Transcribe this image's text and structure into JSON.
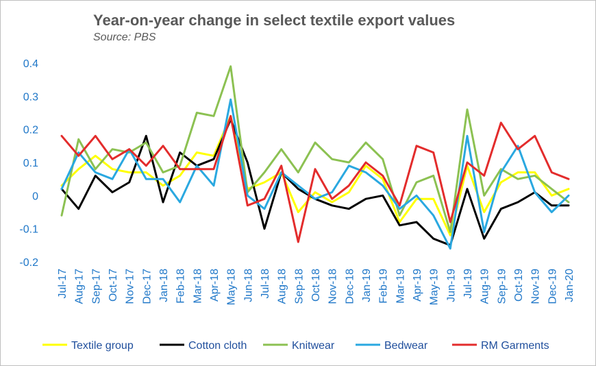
{
  "title": "Year-on-year change in select textile export values",
  "subtitle": "Source: PBS",
  "chart_data": {
    "type": "line",
    "title": "Year-on-year change in select textile export values",
    "subtitle": "Source: PBS",
    "xlabel": "",
    "ylabel": "",
    "ylim": [
      -0.2,
      0.4
    ],
    "yticks": [
      0.4,
      0.3,
      0.2,
      0.1,
      0,
      -0.1,
      -0.2
    ],
    "ytick_labels": [
      "0.4",
      "0.3",
      "0.2",
      "0.1",
      "0",
      "-0.1",
      "-0.2"
    ],
    "grid": false,
    "legend_position": "bottom",
    "categories": [
      "Jul-17",
      "Aug-17",
      "Sep-17",
      "Oct-17",
      "Nov-17",
      "Dec-17",
      "Jan-18",
      "Feb-18",
      "Mar-18",
      "Apr-18",
      "May-18",
      "Jun-18",
      "Jul-18",
      "Aug-18",
      "Sep-18",
      "Oct-18",
      "Nov-18",
      "Dec-18",
      "Jan-19",
      "Feb-19",
      "Mar-19",
      "Apr-19",
      "May-19",
      "Jun-19",
      "Jul-19",
      "Aug-19",
      "Sep-19",
      "Oct-19",
      "Nov-19",
      "Dec-19",
      "Jan-20"
    ],
    "series": [
      {
        "name": "Textile group",
        "color": "#ffff00",
        "values": [
          0.03,
          0.08,
          0.12,
          0.08,
          0.07,
          0.07,
          0.03,
          0.06,
          0.13,
          0.12,
          0.24,
          0.02,
          0.04,
          0.07,
          -0.05,
          0.01,
          -0.02,
          0.01,
          0.09,
          0.05,
          -0.08,
          -0.01,
          -0.01,
          -0.12,
          0.09,
          -0.05,
          0.04,
          0.07,
          0.07,
          0.0,
          0.02
        ]
      },
      {
        "name": "Cotton cloth",
        "color": "#000000",
        "values": [
          0.02,
          -0.04,
          0.06,
          0.01,
          0.04,
          0.18,
          -0.02,
          0.13,
          0.09,
          0.11,
          0.23,
          0.1,
          -0.1,
          0.07,
          0.02,
          -0.01,
          -0.03,
          -0.04,
          -0.01,
          0.0,
          -0.09,
          -0.08,
          -0.13,
          -0.15,
          0.02,
          -0.13,
          -0.04,
          -0.02,
          0.01,
          -0.03,
          -0.03
        ]
      },
      {
        "name": "Knitwear",
        "color": "#8cc152",
        "values": [
          -0.06,
          0.17,
          0.08,
          0.14,
          0.13,
          0.16,
          0.07,
          0.09,
          0.25,
          0.24,
          0.39,
          0.01,
          0.07,
          0.14,
          0.07,
          0.16,
          0.11,
          0.1,
          0.16,
          0.11,
          -0.06,
          0.04,
          0.06,
          -0.11,
          0.26,
          0.0,
          0.08,
          0.05,
          0.06,
          0.02,
          -0.02
        ]
      },
      {
        "name": "Bedwear",
        "color": "#2aa8e0",
        "values": [
          0.02,
          0.13,
          0.07,
          0.05,
          0.14,
          0.05,
          0.05,
          -0.02,
          0.09,
          0.03,
          0.29,
          0.0,
          -0.04,
          0.07,
          0.03,
          -0.01,
          0.01,
          0.09,
          0.07,
          0.03,
          -0.04,
          0.0,
          -0.06,
          -0.16,
          0.18,
          -0.11,
          0.07,
          0.15,
          0.01,
          -0.05,
          0.0
        ]
      },
      {
        "name": "RM Garments",
        "color": "#e32c2c",
        "values": [
          0.18,
          0.12,
          0.18,
          0.11,
          0.14,
          0.09,
          0.15,
          0.08,
          0.08,
          0.08,
          0.24,
          -0.03,
          -0.01,
          0.09,
          -0.14,
          0.08,
          -0.01,
          0.03,
          0.1,
          0.06,
          -0.03,
          0.15,
          0.13,
          -0.08,
          0.1,
          0.06,
          0.22,
          0.14,
          0.18,
          0.07,
          0.05
        ]
      }
    ]
  }
}
